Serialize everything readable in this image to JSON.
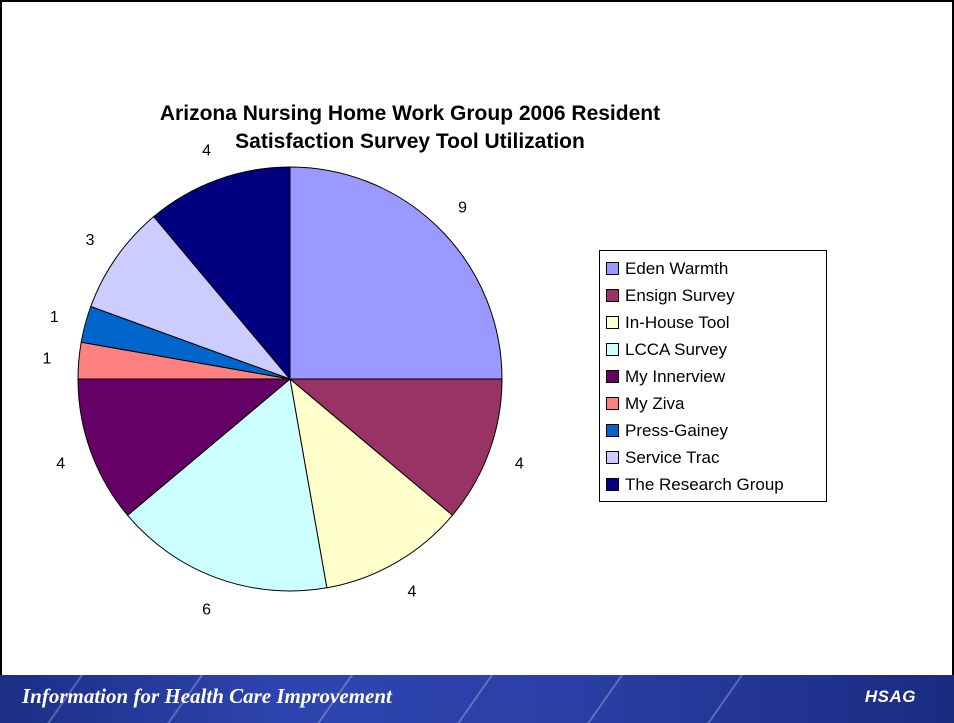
{
  "chart_data": {
    "type": "pie",
    "title": "Arizona Nursing Home Work Group 2006 Resident Satisfaction Survey Tool Utilization",
    "title_lines": [
      "Arizona Nursing Home Work Group 2006 Resident",
      "Satisfaction Survey Tool Utilization"
    ],
    "legend_position": "right",
    "categories": [
      "Eden Warmth",
      "Ensign Survey",
      "In-House Tool",
      "LCCA Survey",
      "My Innerview",
      "My Ziva",
      "Press-Gainey",
      "Service Trac",
      "The Research Group"
    ],
    "values": [
      9,
      4,
      4,
      6,
      4,
      1,
      1,
      3,
      4
    ],
    "colors": [
      "#9999ff",
      "#993366",
      "#ffffcc",
      "#ccffff",
      "#660066",
      "#ff8080",
      "#0066cc",
      "#ccccff",
      "#000080"
    ]
  },
  "footer": {
    "tagline": "Information for Health Care Improvement",
    "logo": "HSAG"
  }
}
